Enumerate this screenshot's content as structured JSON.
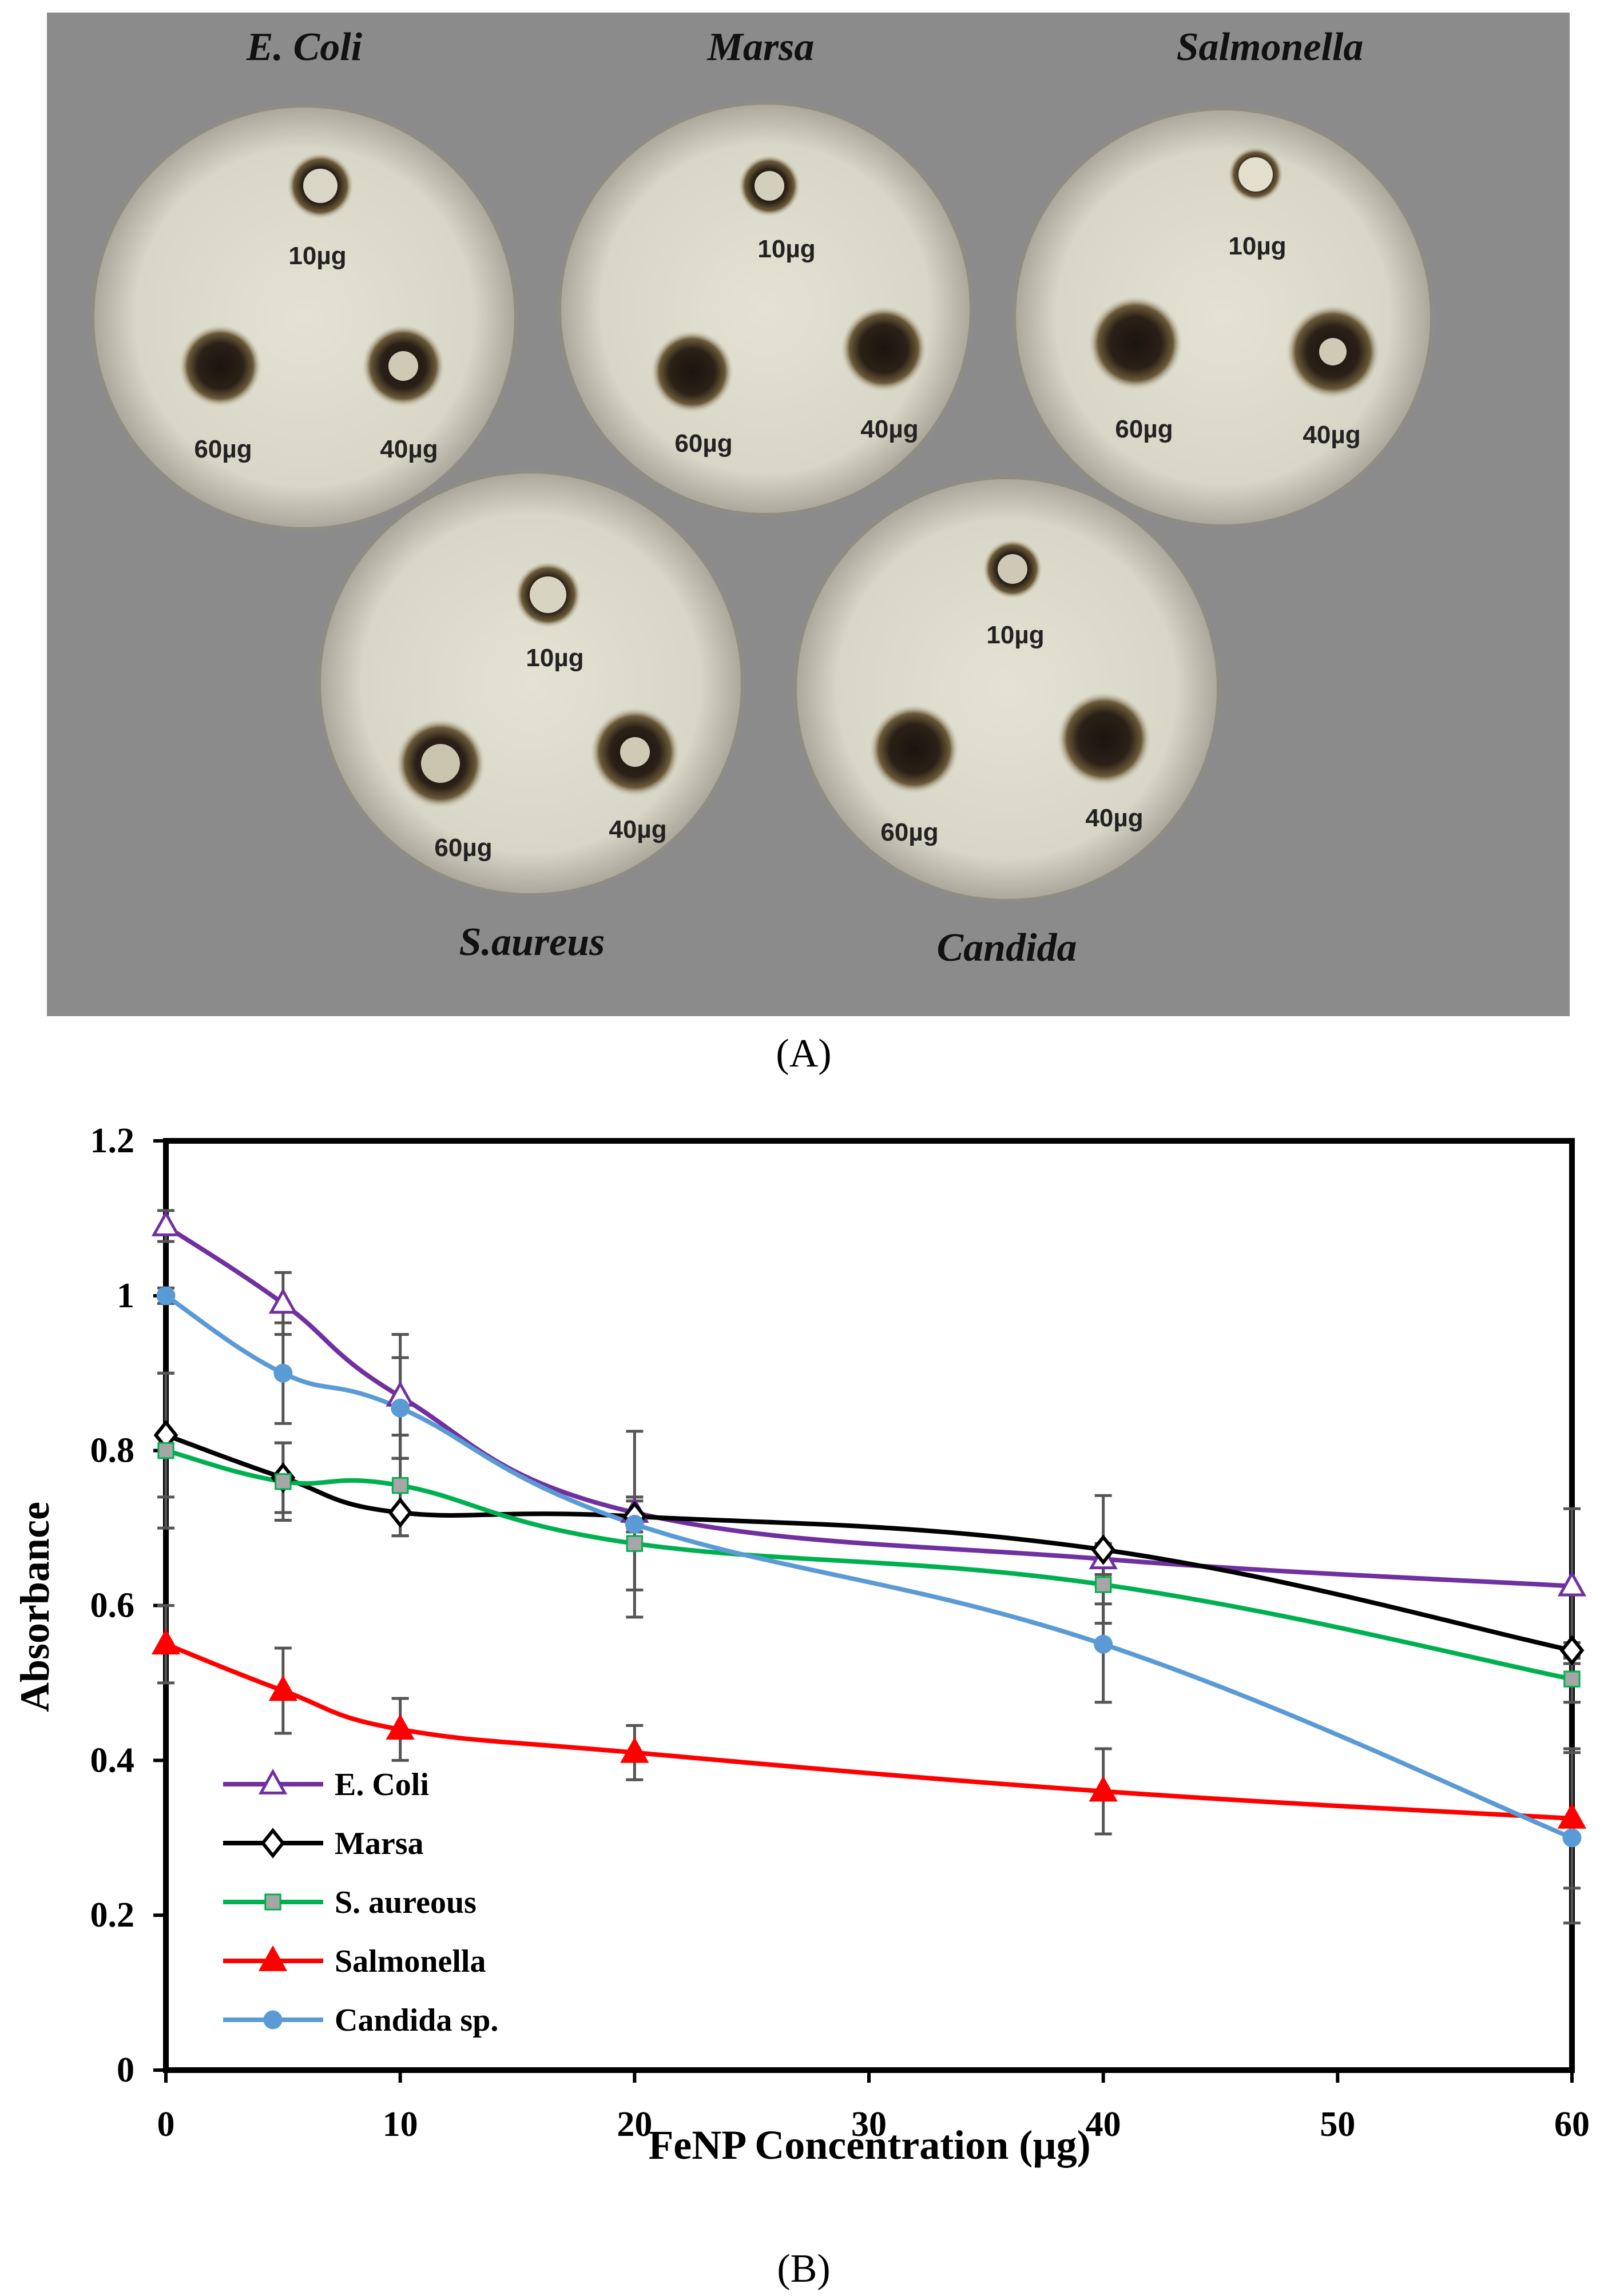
{
  "panelA": {
    "letter": "(A)",
    "plates": [
      {
        "organism": "E. Coli",
        "doses": [
          "10µg",
          "60µg",
          "40µg"
        ]
      },
      {
        "organism": "Marsa",
        "doses": [
          "10µg",
          "60µg",
          "40µg"
        ]
      },
      {
        "organism": "Salmonella",
        "doses": [
          "10µg",
          "60µg",
          "40µg"
        ]
      },
      {
        "organism": "S.aureus",
        "doses": [
          "10µg",
          "60µg",
          "40µg"
        ]
      },
      {
        "organism": "Candida",
        "doses": [
          "10µg",
          "60µg",
          "40µg"
        ]
      }
    ]
  },
  "panelB": {
    "letter": "(B)"
  },
  "chart_data": {
    "type": "line",
    "title": "",
    "xlabel": "FeNP Concentration (µg)",
    "ylabel": "Absorbance",
    "xlim": [
      0,
      60
    ],
    "ylim": [
      0,
      1.2
    ],
    "xticks": [
      0,
      10,
      20,
      30,
      40,
      50,
      60
    ],
    "yticks": [
      0,
      0.2,
      0.4,
      0.6,
      0.8,
      1,
      1.2
    ],
    "ytick_labels": [
      "0",
      "0.2",
      "0.4",
      "0.6",
      "0.8",
      "1",
      "1.2"
    ],
    "legend_position": "bottom-left",
    "x": [
      0,
      5,
      10,
      20,
      40,
      60
    ],
    "series": [
      {
        "name": "E. Coli",
        "color": "#7030a0",
        "marker": "triangle-open",
        "values": [
          1.09,
          0.99,
          0.87,
          0.72,
          0.66,
          0.625
        ],
        "errors": [
          0.02,
          0.04,
          0.08,
          0.02,
          0.02,
          0.1
        ]
      },
      {
        "name": "Marsa",
        "color": "#000000",
        "marker": "diamond-open",
        "values": [
          0.82,
          0.765,
          0.72,
          0.715,
          0.672,
          0.542
        ],
        "errors": [
          0.08,
          0.045,
          0.03,
          0.02,
          0.07,
          0.01
        ]
      },
      {
        "name": "S. aureous",
        "color": "#00b050",
        "marker": "square-filled",
        "values": [
          0.8,
          0.76,
          0.755,
          0.68,
          0.627,
          0.505
        ],
        "errors": [
          0.1,
          0.05,
          0.065,
          0.06,
          0.05,
          0.03
        ]
      },
      {
        "name": "Salmonella",
        "color": "#ff0000",
        "marker": "triangle-filled",
        "values": [
          0.55,
          0.49,
          0.44,
          0.41,
          0.36,
          0.325
        ],
        "errors": [
          0.05,
          0.055,
          0.04,
          0.035,
          0.055,
          0.09
        ]
      },
      {
        "name": "Candida sp.",
        "color": "#5b9bd5",
        "marker": "circle-filled",
        "values": [
          1.0,
          0.9,
          0.855,
          0.705,
          0.55,
          0.3
        ],
        "errors": [
          0.01,
          0.065,
          0.065,
          0.12,
          0.075,
          0.11
        ]
      }
    ]
  }
}
